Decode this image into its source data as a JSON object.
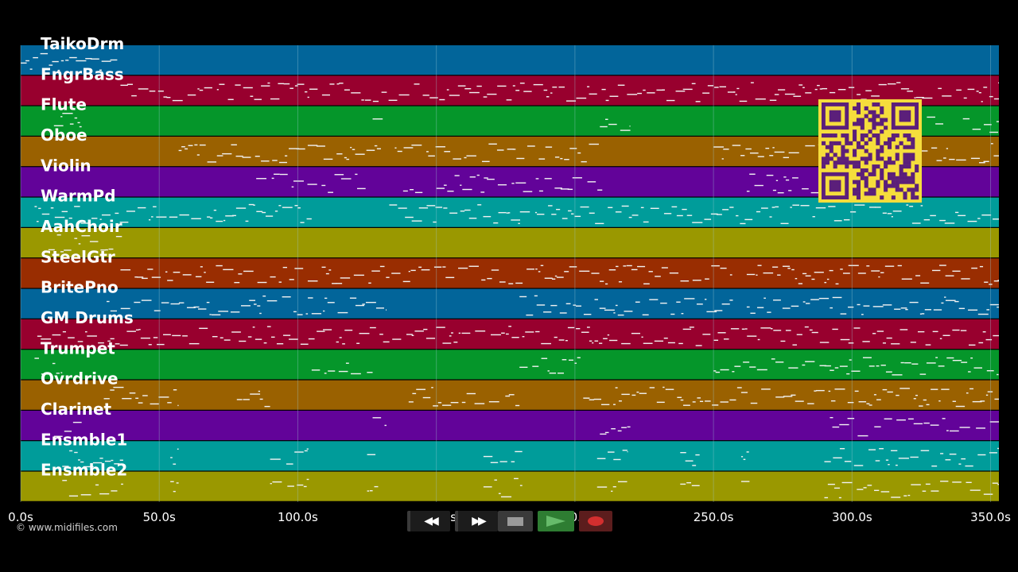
{
  "colors": {
    "background": "#000000",
    "note": "#f2f2f2",
    "gridline": "#9ecbd6",
    "qr_bg": "#f5dd3c",
    "qr_fg": "#5b1f7a"
  },
  "tracks": [
    {
      "name": "TaikoDrm",
      "color": "#02659a"
    },
    {
      "name": "FngrBass",
      "color": "#98002e"
    },
    {
      "name": "Flute",
      "color": "#05962a"
    },
    {
      "name": "Oboe",
      "color": "#9a6100"
    },
    {
      "name": "Violin",
      "color": "#620399"
    },
    {
      "name": "WarmPd",
      "color": "#009c9a"
    },
    {
      "name": "AahChoir",
      "color": "#9a9800"
    },
    {
      "name": "SteelGtr",
      "color": "#992d01"
    },
    {
      "name": "BritePno",
      "color": "#02659a"
    },
    {
      "name": "GM Drums",
      "color": "#98002e"
    },
    {
      "name": "Trumpet",
      "color": "#05962a"
    },
    {
      "name": "Ovrdrive",
      "color": "#9a6100"
    },
    {
      "name": "Clarinet",
      "color": "#620399"
    },
    {
      "name": "Ensmble1",
      "color": "#009c9a"
    },
    {
      "name": "Ensmble2",
      "color": "#9a9800"
    }
  ],
  "timeline": {
    "duration_s": 353,
    "ticks": [
      {
        "t": 0,
        "label": "0.0s"
      },
      {
        "t": 50,
        "label": "50.0s"
      },
      {
        "t": 100,
        "label": "100.0s"
      },
      {
        "t": 150,
        "label": "150.0s"
      },
      {
        "t": 200,
        "label": "200.0s"
      },
      {
        "t": 250,
        "label": "250.0s"
      },
      {
        "t": 300,
        "label": "300.0s"
      },
      {
        "t": 350,
        "label": "350.0s"
      }
    ]
  },
  "note_segments": [
    [
      [
        0,
        35
      ]
    ],
    [
      [
        36,
        353
      ]
    ],
    [
      [
        12,
        22
      ],
      [
        127,
        132
      ],
      [
        209,
        220
      ],
      [
        300,
        310
      ],
      [
        327,
        333
      ],
      [
        340,
        353
      ]
    ],
    [
      [
        57,
        130
      ],
      [
        135,
        210
      ],
      [
        250,
        353
      ]
    ],
    [
      [
        85,
        125
      ],
      [
        138,
        145
      ],
      [
        150,
        210
      ],
      [
        262,
        300
      ]
    ],
    [
      [
        5,
        105
      ],
      [
        133,
        353
      ]
    ],
    [
      [
        10,
        37
      ]
    ],
    [
      [
        36,
        257
      ],
      [
        262,
        353
      ]
    ],
    [
      [
        31,
        132
      ],
      [
        180,
        257
      ],
      [
        262,
        353
      ]
    ],
    [
      [
        6,
        353
      ]
    ],
    [
      [
        5,
        15
      ],
      [
        105,
        127
      ],
      [
        180,
        202
      ],
      [
        250,
        353
      ]
    ],
    [
      [
        30,
        57
      ],
      [
        78,
        90
      ],
      [
        140,
        180
      ],
      [
        203,
        353
      ]
    ],
    [
      [
        12,
        22
      ],
      [
        127,
        132
      ],
      [
        209,
        220
      ],
      [
        292,
        353
      ]
    ],
    [
      [
        15,
        37
      ],
      [
        54,
        57
      ],
      [
        90,
        104
      ],
      [
        125,
        129
      ],
      [
        167,
        181
      ],
      [
        208,
        219
      ],
      [
        238,
        245
      ],
      [
        260,
        263
      ],
      [
        290,
        353
      ]
    ],
    [
      [
        15,
        37
      ],
      [
        54,
        57
      ],
      [
        90,
        104
      ],
      [
        125,
        129
      ],
      [
        167,
        181
      ],
      [
        208,
        219
      ],
      [
        238,
        245
      ],
      [
        260,
        263
      ],
      [
        290,
        353
      ]
    ]
  ],
  "copyright": "© www.midifiles.com",
  "transport": {
    "rewind": "rewind-icon",
    "fast_forward": "fast-forward-icon",
    "stop": "stop-icon",
    "play": "play-icon",
    "record": "record-icon"
  }
}
